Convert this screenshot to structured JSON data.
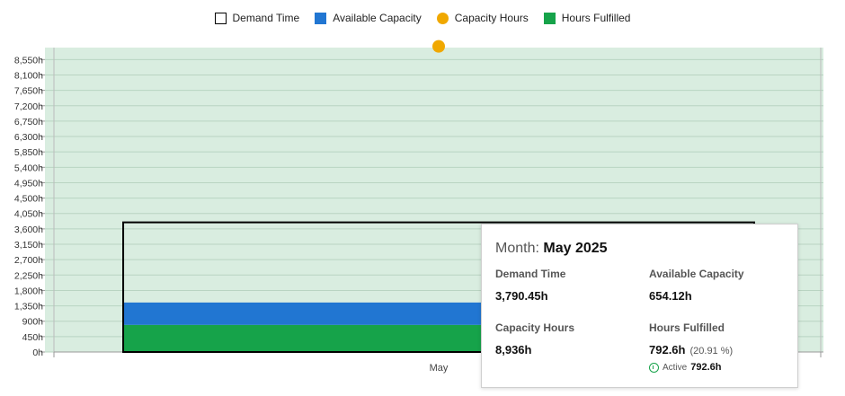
{
  "chart_data": {
    "type": "bar",
    "categories": [
      "May"
    ],
    "series": [
      {
        "name": "Demand Time",
        "values": [
          3790.45
        ],
        "style": "outline",
        "color": "#000000"
      },
      {
        "name": "Available Capacity",
        "values": [
          654.12
        ],
        "style": "stacked",
        "color": "#2176d2"
      },
      {
        "name": "Capacity Hours",
        "values": [
          8936
        ],
        "style": "dot",
        "color": "#f0a800"
      },
      {
        "name": "Hours Fulfilled",
        "values": [
          792.6
        ],
        "style": "stacked",
        "color": "#16a34a"
      }
    ],
    "y_ticks": [
      "0h",
      "450h",
      "900h",
      "1,350h",
      "1,800h",
      "2,250h",
      "2,700h",
      "3,150h",
      "3,600h",
      "4,050h",
      "4,500h",
      "4,950h",
      "5,400h",
      "5,850h",
      "6,300h",
      "6,750h",
      "7,200h",
      "7,650h",
      "8,100h",
      "8,550h"
    ],
    "ylim": [
      0,
      8900
    ],
    "grid": true,
    "legend_position": "top-center",
    "plot_background": "#d9ede0",
    "grid_color": "#b9d4c2"
  },
  "legend": [
    {
      "label": "Demand Time",
      "color": "#ffffff"
    },
    {
      "label": "Available Capacity",
      "color": "#2176d2"
    },
    {
      "label": "Capacity Hours",
      "color": "#f0a800"
    },
    {
      "label": "Hours Fulfilled",
      "color": "#16a34a"
    }
  ],
  "tooltip": {
    "title_key": "Month:",
    "title_value": "May 2025",
    "demand_label": "Demand Time",
    "demand_value": "3,790.45h",
    "available_label": "Available Capacity",
    "available_value": "654.12h",
    "capacity_label": "Capacity Hours",
    "capacity_value": "8,936h",
    "fulfilled_label": "Hours Fulfilled",
    "fulfilled_value": "792.6h",
    "fulfilled_pct": "(20.91 %)",
    "active_label": "Active",
    "active_value": "792.6h"
  }
}
